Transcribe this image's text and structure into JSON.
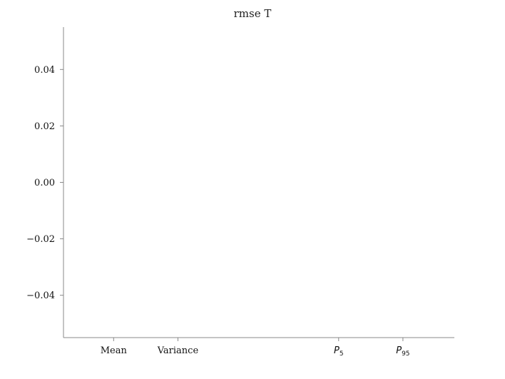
{
  "chart_data": {
    "type": "bar",
    "title": "rmse T",
    "xlabel": "",
    "ylabel": "",
    "categories": [
      "Mean",
      "Variance",
      "P5",
      "P95"
    ],
    "category_positions": [
      0,
      1,
      3.5,
      4.5
    ],
    "category_labels": [
      {
        "base": "Mean",
        "sub": ""
      },
      {
        "base": "Variance",
        "sub": ""
      },
      {
        "base": "P",
        "sub": "5",
        "math": true
      },
      {
        "base": "P",
        "sub": "95",
        "math": true
      }
    ],
    "xlim": [
      -0.78,
      5.3
    ],
    "series": [
      {
        "values": [
          null,
          null,
          null,
          null
        ]
      }
    ],
    "ylim": [
      -0.055,
      0.055
    ],
    "yticks": [
      -0.04,
      -0.02,
      0.0,
      0.02,
      0.04
    ],
    "ytick_labels": [
      "−0.04",
      "−0.02",
      "0.00",
      "0.02",
      "0.04"
    ],
    "grid": false,
    "legend": "none",
    "axis_color": "#888888"
  }
}
